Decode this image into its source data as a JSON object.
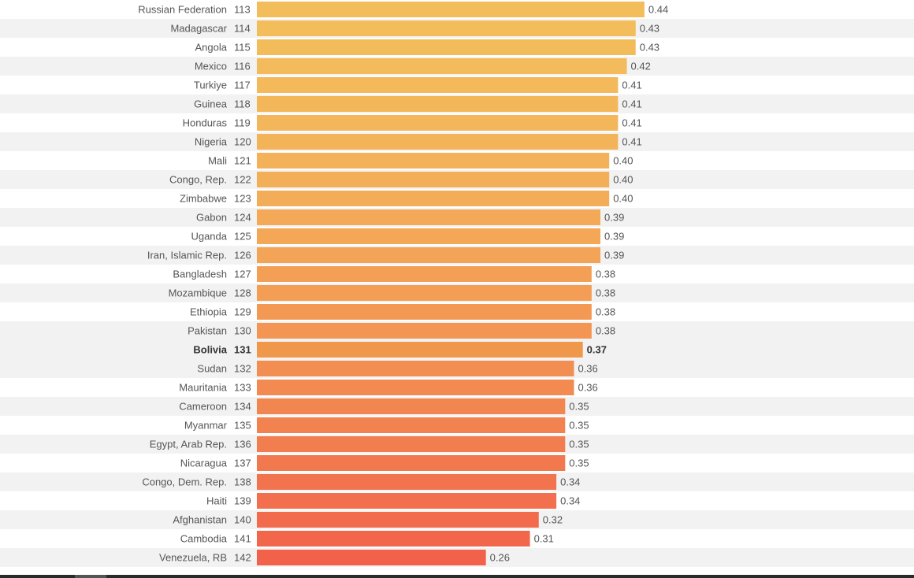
{
  "chart_data": {
    "type": "bar",
    "orientation": "horizontal",
    "highlight": "Bolivia",
    "xlim": [
      0,
      0.5
    ],
    "grid": false,
    "colors": {
      "top": "#f3bd5b",
      "bottom": "#f2614a",
      "highlight": "#ef974b",
      "band": "#f2f2f2"
    },
    "rows": [
      {
        "country": "Russian Federation",
        "rank": "113",
        "value": 0.44,
        "label": "0.44"
      },
      {
        "country": "Madagascar",
        "rank": "114",
        "value": 0.43,
        "label": "0.43"
      },
      {
        "country": "Angola",
        "rank": "115",
        "value": 0.43,
        "label": "0.43"
      },
      {
        "country": "Mexico",
        "rank": "116",
        "value": 0.42,
        "label": "0.42"
      },
      {
        "country": "Turkiye",
        "rank": "117",
        "value": 0.41,
        "label": "0.41"
      },
      {
        "country": "Guinea",
        "rank": "118",
        "value": 0.41,
        "label": "0.41"
      },
      {
        "country": "Honduras",
        "rank": "119",
        "value": 0.41,
        "label": "0.41"
      },
      {
        "country": "Nigeria",
        "rank": "120",
        "value": 0.41,
        "label": "0.41"
      },
      {
        "country": "Mali",
        "rank": "121",
        "value": 0.4,
        "label": "0.40"
      },
      {
        "country": "Congo, Rep.",
        "rank": "122",
        "value": 0.4,
        "label": "0.40"
      },
      {
        "country": "Zimbabwe",
        "rank": "123",
        "value": 0.4,
        "label": "0.40"
      },
      {
        "country": "Gabon",
        "rank": "124",
        "value": 0.39,
        "label": "0.39"
      },
      {
        "country": "Uganda",
        "rank": "125",
        "value": 0.39,
        "label": "0.39"
      },
      {
        "country": "Iran, Islamic Rep.",
        "rank": "126",
        "value": 0.39,
        "label": "0.39"
      },
      {
        "country": "Bangladesh",
        "rank": "127",
        "value": 0.38,
        "label": "0.38"
      },
      {
        "country": "Mozambique",
        "rank": "128",
        "value": 0.38,
        "label": "0.38"
      },
      {
        "country": "Ethiopia",
        "rank": "129",
        "value": 0.38,
        "label": "0.38"
      },
      {
        "country": "Pakistan",
        "rank": "130",
        "value": 0.38,
        "label": "0.38"
      },
      {
        "country": "Bolivia",
        "rank": "131",
        "value": 0.37,
        "label": "0.37"
      },
      {
        "country": "Sudan",
        "rank": "132",
        "value": 0.36,
        "label": "0.36"
      },
      {
        "country": "Mauritania",
        "rank": "133",
        "value": 0.36,
        "label": "0.36"
      },
      {
        "country": "Cameroon",
        "rank": "134",
        "value": 0.35,
        "label": "0.35"
      },
      {
        "country": "Myanmar",
        "rank": "135",
        "value": 0.35,
        "label": "0.35"
      },
      {
        "country": "Egypt, Arab Rep.",
        "rank": "136",
        "value": 0.35,
        "label": "0.35"
      },
      {
        "country": "Nicaragua",
        "rank": "137",
        "value": 0.35,
        "label": "0.35"
      },
      {
        "country": "Congo, Dem. Rep.",
        "rank": "138",
        "value": 0.34,
        "label": "0.34"
      },
      {
        "country": "Haiti",
        "rank": "139",
        "value": 0.34,
        "label": "0.34"
      },
      {
        "country": "Afghanistan",
        "rank": "140",
        "value": 0.32,
        "label": "0.32"
      },
      {
        "country": "Cambodia",
        "rank": "141",
        "value": 0.31,
        "label": "0.31"
      },
      {
        "country": "Venezuela, RB",
        "rank": "142",
        "value": 0.26,
        "label": "0.26"
      }
    ]
  }
}
